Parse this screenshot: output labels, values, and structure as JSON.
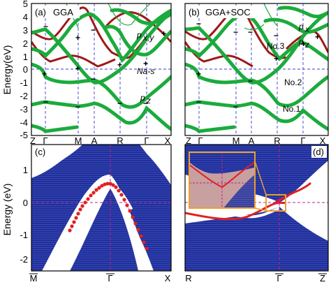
{
  "figure": {
    "y_axis_label_top": "Energy(eV)",
    "y_axis_label_bottom": "Energy (eV)"
  },
  "panels": {
    "a": {
      "label": "(a)",
      "title": "GGA",
      "yticks": [
        "5",
        "4",
        "3",
        "2",
        "1",
        "0",
        "-1",
        "-2",
        "-3",
        "-4",
        "-5"
      ],
      "xticks": [
        "Z",
        "Γ",
        "M",
        "A",
        "R",
        "Γ",
        "X"
      ],
      "annotations": {
        "pxy": "p",
        "pxy_sub": "x,y",
        "nas": "Na-s",
        "pz": "p",
        "pz_sub": "z"
      }
    },
    "b": {
      "label": "(b)",
      "title": "GGA+SOC",
      "xticks": [
        "Z",
        "Γ",
        "M",
        "A",
        "R",
        "Γ",
        "X"
      ],
      "annotations": {
        "no1": "No.1",
        "no2": "No.2",
        "no3": "No.3",
        "px": "p",
        "px_sub": "x",
        "pz": "p",
        "pz_sub": "z"
      }
    },
    "c": {
      "label": "(c)",
      "yticks": [
        "1",
        "0",
        "-1",
        "-2"
      ],
      "xticks": [
        "M",
        "Γ",
        "X"
      ],
      "xticks_bar": [
        true,
        true,
        false
      ]
    },
    "d": {
      "label": "(d)",
      "xticks": [
        "R",
        "Γ",
        "Z"
      ],
      "xticks_bar": [
        false,
        true,
        true
      ]
    }
  },
  "colors": {
    "green": "#1bab3c",
    "darkred": "#a01818",
    "navy": "#1f2f9e",
    "red": "#e02020",
    "magenta": "#c0208a",
    "blue_dash": "#3a3ad0",
    "orange": "#e8a030"
  },
  "chart_data": [
    {
      "type": "line",
      "panel": "a",
      "title": "GGA",
      "ylabel": "Energy(eV)",
      "ylim": [
        -5,
        5
      ],
      "categories": [
        "Z",
        "Γ",
        "M",
        "A",
        "R",
        "Γ",
        "X"
      ]
    },
    {
      "type": "line",
      "panel": "b",
      "title": "GGA+SOC",
      "ylim": [
        -5,
        5
      ],
      "categories": [
        "Z",
        "Γ",
        "M",
        "A",
        "R",
        "Γ",
        "X"
      ]
    },
    {
      "type": "line",
      "panel": "c",
      "ylabel": "Energy (eV)",
      "ylim": [
        -2.5,
        1.5
      ],
      "categories": [
        "M",
        "Γ",
        "X"
      ]
    },
    {
      "type": "line",
      "panel": "d",
      "ylim": [
        -2.5,
        1.5
      ],
      "categories": [
        "R",
        "Γ",
        "Z"
      ]
    }
  ]
}
